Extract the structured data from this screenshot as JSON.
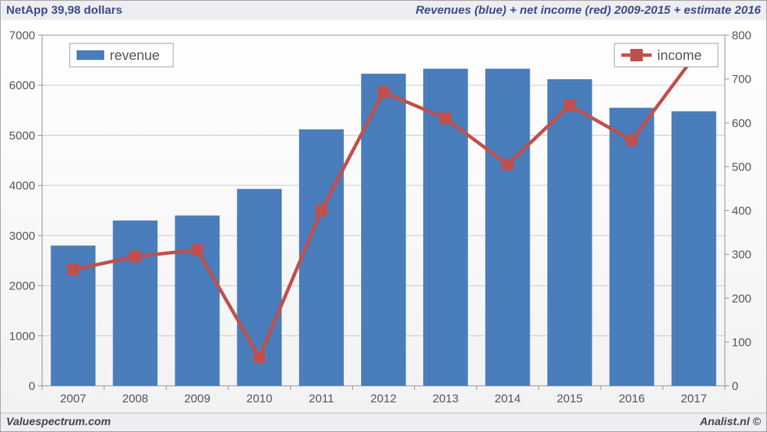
{
  "header": {
    "left": "NetApp 39,98 dollars",
    "right": "Revenues (blue) + net income (red) 2009-2015 + estimate 2016"
  },
  "footer": {
    "left": "Valuespectrum.com",
    "right": "Analist.nl ©"
  },
  "chart": {
    "type": "bar+line",
    "categories": [
      "2007",
      "2008",
      "2009",
      "2010",
      "2011",
      "2012",
      "2013",
      "2014",
      "2015",
      "2016",
      "2017"
    ],
    "revenue": {
      "label": "revenue",
      "values": [
        2800,
        3300,
        3400,
        3930,
        5120,
        6230,
        6330,
        6330,
        6120,
        5550,
        5480
      ],
      "color": "#4a7dbb"
    },
    "income": {
      "label": "income",
      "values": [
        265,
        295,
        310,
        65,
        400,
        670,
        610,
        505,
        640,
        560,
        750
      ],
      "color": "#c0504d",
      "line_width": 5,
      "marker_size": 16
    },
    "y_left": {
      "min": 0,
      "max": 7000,
      "step": 1000
    },
    "y_right": {
      "min": 0,
      "max": 800,
      "step": 100
    },
    "background_gradient": [
      "#ffffff",
      "#f2f2f2"
    ],
    "grid_color": "#c8c8c8",
    "axis_color": "#888888",
    "tick_fontsize": 17,
    "legend_fontsize": 20,
    "bar_width_ratio": 0.72,
    "plot_border": true
  }
}
